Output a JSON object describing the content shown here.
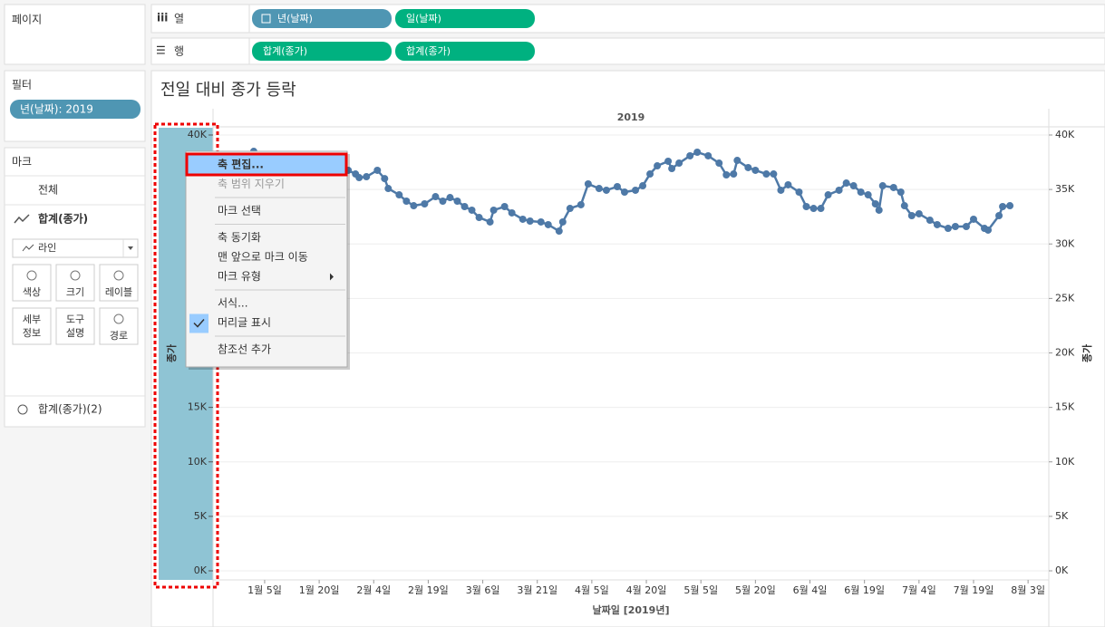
{
  "sidebar": {
    "pages": "페이지",
    "filters": "필터",
    "filter_pill": "년(날짜): 2019",
    "marks": "마크",
    "all": "전체",
    "measure": "합계(종가)",
    "mark_type": "라인",
    "buttons": [
      [
        "색상"
      ],
      [
        "크기"
      ],
      [
        "레이블"
      ],
      [
        "세부",
        "정보"
      ],
      [
        "도구",
        "설명"
      ],
      [
        "경로"
      ]
    ],
    "measure2": "합계(종가)(2)"
  },
  "shelves": {
    "columns_label": "열",
    "columns": [
      "년(날짜)",
      "일(날짜)"
    ],
    "rows_label": "행",
    "rows": [
      "합계(종가)",
      "합계(종가)"
    ]
  },
  "chart_data": {
    "type": "line",
    "title": "전일 대비 종가 등락",
    "header": "2019",
    "x_label": "날짜일 [2019년]",
    "y_label": "종가",
    "y2_label": "종가",
    "grid": true,
    "xlim": [
      -9.2,
      220.7
    ],
    "xticks": [
      {
        "value": 5,
        "label": "1월 5일"
      },
      {
        "value": 20,
        "label": "1월 20일"
      },
      {
        "value": 35,
        "label": "2월 4일"
      },
      {
        "value": 50,
        "label": "2월 19일"
      },
      {
        "value": 65,
        "label": "3월 6일"
      },
      {
        "value": 80,
        "label": "3월 21일"
      },
      {
        "value": 95,
        "label": "4월 5일"
      },
      {
        "value": 110,
        "label": "4월 20일"
      },
      {
        "value": 125,
        "label": "5월 5일"
      },
      {
        "value": 140,
        "label": "5월 20일"
      },
      {
        "value": 155,
        "label": "6월 4일"
      },
      {
        "value": 170,
        "label": "6월 19일"
      },
      {
        "value": 185,
        "label": "7월 4일"
      },
      {
        "value": 200,
        "label": "7월 19일"
      },
      {
        "value": 215,
        "label": "8월 3일"
      }
    ],
    "ylim": [
      0,
      40000
    ],
    "yticks": [
      {
        "value": 0,
        "label": "0K"
      },
      {
        "value": 5000,
        "label": "5K"
      },
      {
        "value": 10000,
        "label": "10K"
      },
      {
        "value": 15000,
        "label": "15K"
      },
      {
        "value": 20000,
        "label": "20K"
      },
      {
        "value": 25000,
        "label": "25K"
      },
      {
        "value": 30000,
        "label": "30K"
      },
      {
        "value": 35000,
        "label": "35K"
      },
      {
        "value": 40000,
        "label": "40K"
      }
    ],
    "y2lim": [
      0,
      40000
    ],
    "y2ticks": [
      {
        "value": 0,
        "label": "0K"
      },
      {
        "value": 5000,
        "label": "5K"
      },
      {
        "value": 10000,
        "label": "10K"
      },
      {
        "value": 15000,
        "label": "15K"
      },
      {
        "value": 20000,
        "label": "20K"
      },
      {
        "value": 25000,
        "label": "25K"
      },
      {
        "value": 30000,
        "label": "30K"
      },
      {
        "value": 35000,
        "label": "35K"
      },
      {
        "value": 40000,
        "label": "40K"
      }
    ],
    "x": [
      2,
      28,
      30,
      31,
      33,
      36,
      38,
      39,
      42,
      44,
      46,
      49,
      52,
      54,
      56,
      58,
      60,
      62,
      64,
      67,
      68,
      71,
      73,
      76,
      78,
      81,
      83,
      86,
      87,
      89,
      92,
      94,
      97,
      99,
      102,
      104,
      107,
      109,
      111,
      113,
      116,
      117,
      119,
      122,
      124,
      127,
      130,
      132,
      134,
      135,
      138,
      140,
      143,
      145,
      147,
      149,
      152,
      154,
      156,
      158,
      160,
      163,
      165,
      167,
      169,
      171,
      173,
      174,
      175,
      178,
      180,
      181,
      183,
      185,
      188,
      190,
      193,
      195,
      198,
      200,
      203,
      204,
      207,
      208,
      210
    ],
    "series": [
      {
        "color": "#4e79a7",
        "values": [
          38500,
          36760,
          36420,
          36090,
          36170,
          36760,
          36000,
          35090,
          34510,
          33930,
          33510,
          33680,
          34340,
          33930,
          34260,
          33930,
          33430,
          33100,
          32430,
          32020,
          33100,
          33430,
          32850,
          32270,
          32100,
          32020,
          31770,
          31180,
          32020,
          33260,
          33600,
          35510,
          35090,
          34930,
          35260,
          34760,
          34930,
          35340,
          36420,
          37170,
          37590,
          36920,
          37420,
          38090,
          38420,
          38090,
          37420,
          36340,
          36420,
          37670,
          37010,
          36760,
          36420,
          36420,
          34930,
          35430,
          34760,
          33430,
          33260,
          33260,
          34510,
          34930,
          35590,
          35340,
          34760,
          34510,
          33680,
          33100,
          35340,
          35180,
          34760,
          33510,
          32600,
          32770,
          32180,
          31770,
          31430,
          31600,
          31600,
          32270,
          31430,
          31270,
          32600,
          33430,
          33510
        ]
      }
    ]
  },
  "context_menu": {
    "groups": [
      [
        {
          "label": "축 편집...",
          "highlighted": true
        },
        {
          "label": "축 범위 지우기",
          "disabled": true
        }
      ],
      [
        {
          "label": "마크 선택"
        }
      ],
      [
        {
          "label": "축 동기화"
        },
        {
          "label": "맨 앞으로 마크 이동"
        },
        {
          "label": "마크 유형",
          "submenu": true
        }
      ],
      [
        {
          "label": "서식..."
        },
        {
          "label": "머리글 표시",
          "checked": true
        }
      ],
      [
        {
          "label": "참조선 추가"
        }
      ]
    ]
  }
}
